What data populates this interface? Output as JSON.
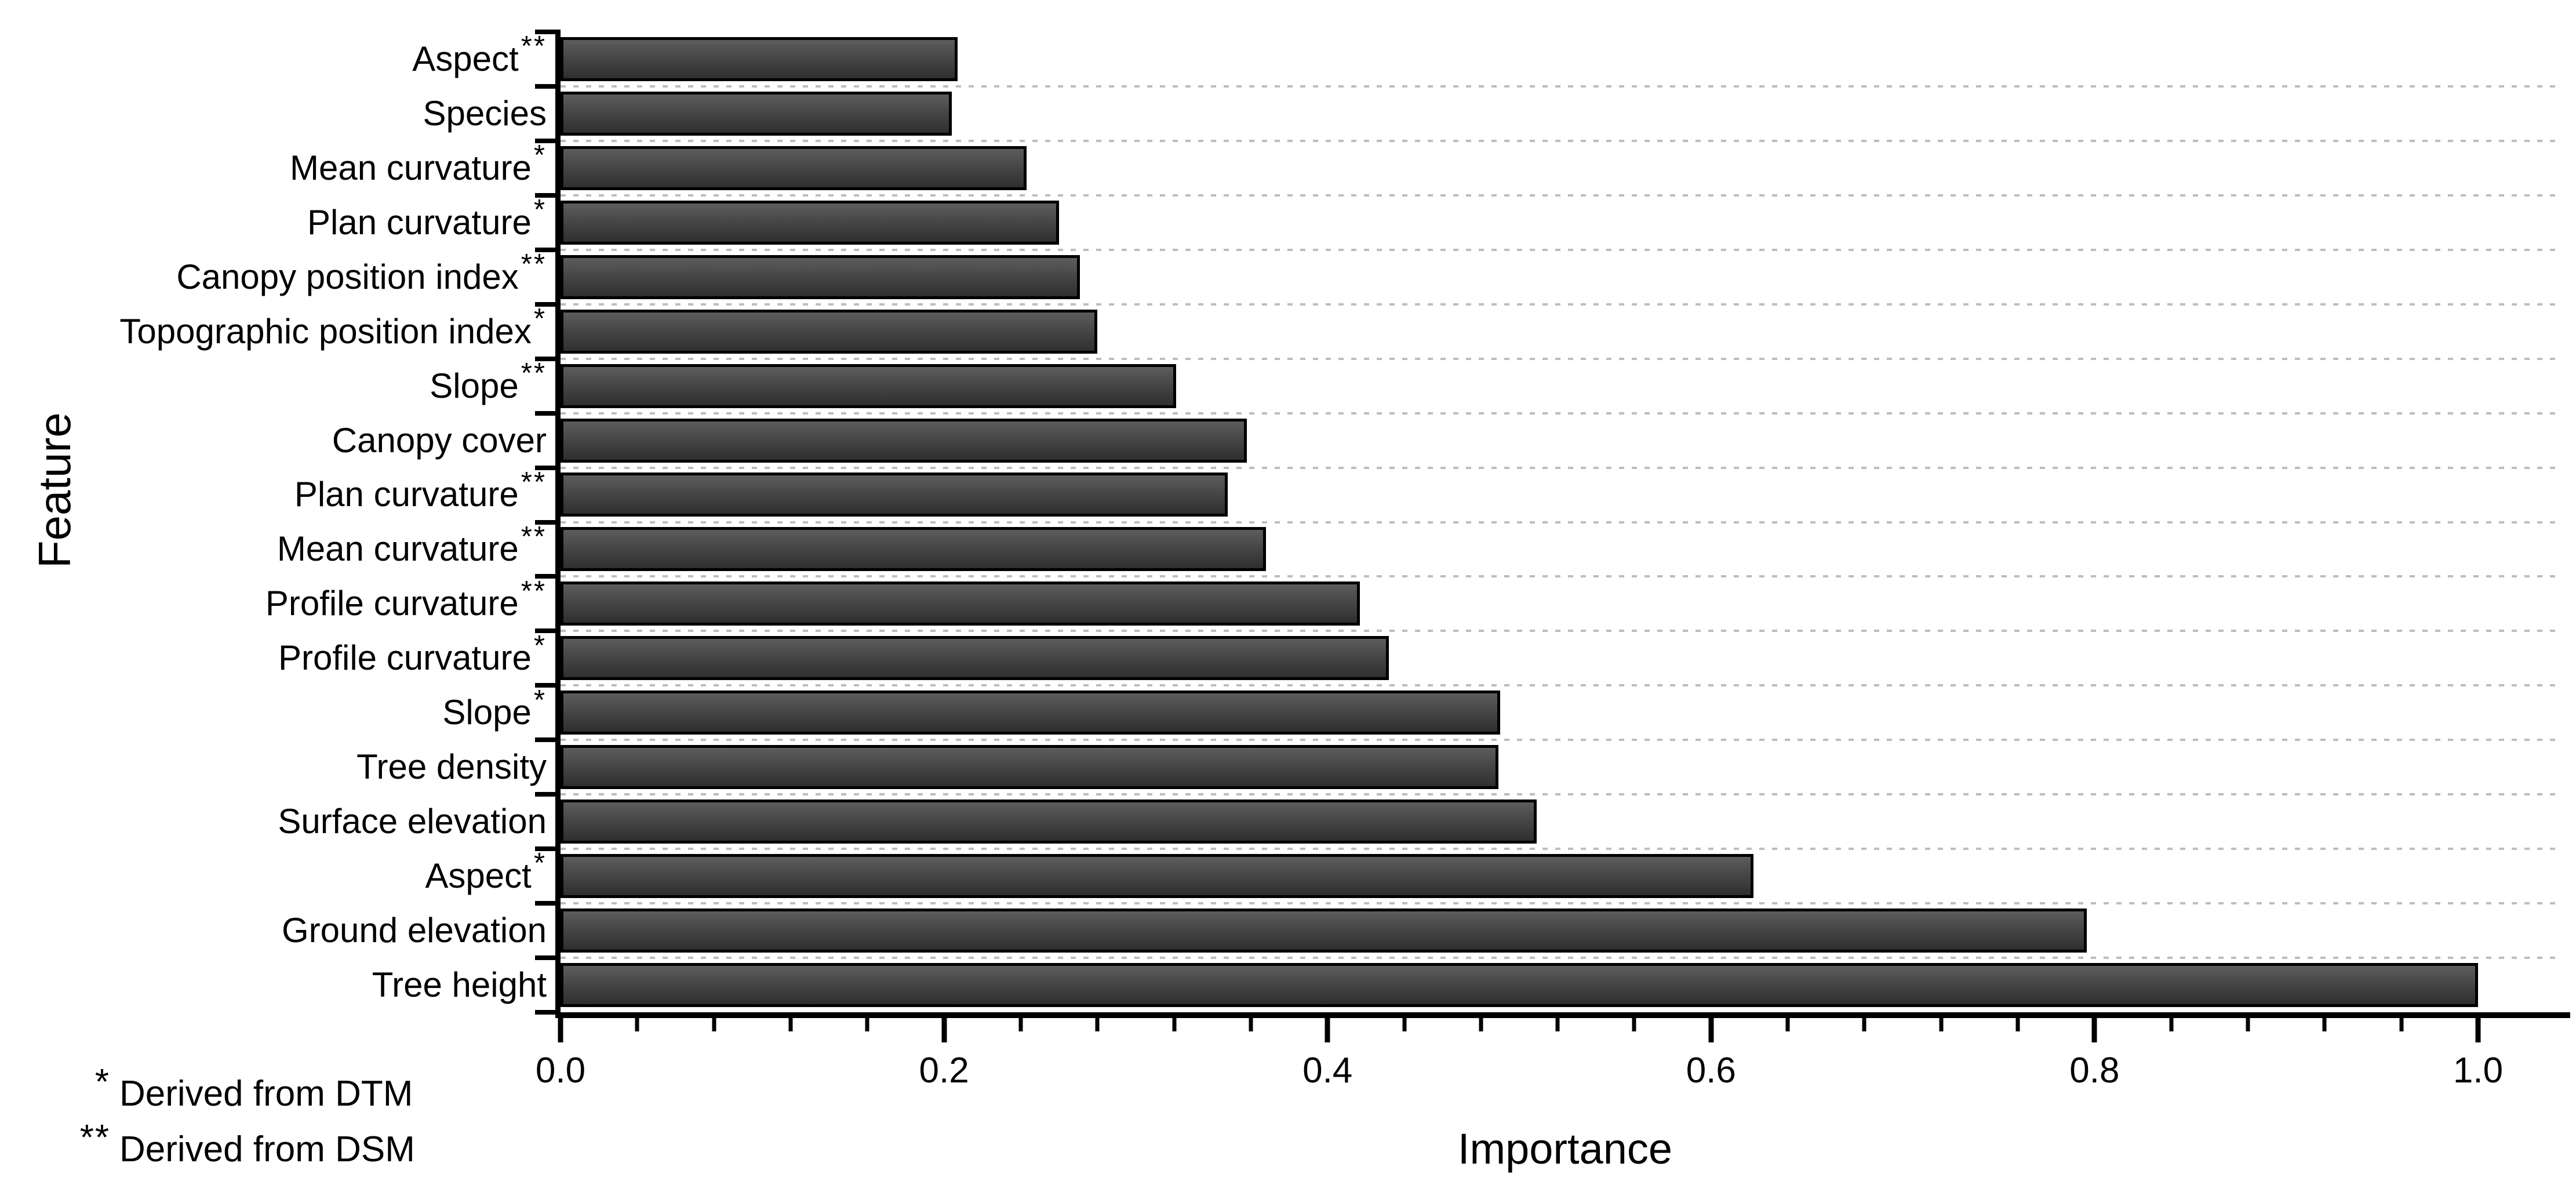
{
  "chart_data": {
    "type": "bar",
    "orientation": "horizontal",
    "title": "",
    "xlabel": "Importance",
    "ylabel": "Feature",
    "xlim": [
      0.0,
      1.0
    ],
    "x_major_tick_values": [
      0.0,
      0.2,
      0.4,
      0.6,
      0.8,
      1.0
    ],
    "x_major_tick_labels": [
      "0.0",
      "0.2",
      "0.4",
      "0.6",
      "0.8",
      "1.0"
    ],
    "x_minor_tick_step": 0.04,
    "grid": "dashed horizontal separators between category rows",
    "legend": "none",
    "categories": [
      {
        "label": "Aspect",
        "marker": "**",
        "value": 0.207
      },
      {
        "label": "Species",
        "marker": "",
        "value": 0.204
      },
      {
        "label": "Mean curvature",
        "marker": "*",
        "value": 0.243
      },
      {
        "label": "Plan curvature",
        "marker": "*",
        "value": 0.26
      },
      {
        "label": "Canopy position index",
        "marker": "**",
        "value": 0.271
      },
      {
        "label": "Topographic position index",
        "marker": "*",
        "value": 0.28
      },
      {
        "label": "Slope",
        "marker": "**",
        "value": 0.321
      },
      {
        "label": "Canopy cover",
        "marker": "",
        "value": 0.358
      },
      {
        "label": "Plan curvature",
        "marker": "**",
        "value": 0.348
      },
      {
        "label": "Mean curvature",
        "marker": "**",
        "value": 0.368
      },
      {
        "label": "Profile curvature",
        "marker": "**",
        "value": 0.417
      },
      {
        "label": "Profile curvature",
        "marker": "*",
        "value": 0.432
      },
      {
        "label": "Slope",
        "marker": "*",
        "value": 0.49
      },
      {
        "label": "Tree density",
        "marker": "",
        "value": 0.489
      },
      {
        "label": "Surface elevation",
        "marker": "",
        "value": 0.509
      },
      {
        "label": "Aspect",
        "marker": "*",
        "value": 0.622
      },
      {
        "label": "Ground elevation",
        "marker": "",
        "value": 0.796
      },
      {
        "label": "Tree height",
        "marker": "",
        "value": 1.0
      }
    ],
    "footnotes": [
      {
        "marker": "*",
        "text": "Derived from DTM"
      },
      {
        "marker": "**",
        "text": "Derived from DSM"
      }
    ],
    "colors": {
      "background": "#ffffff",
      "text": "#000000",
      "bar_fill_top": "#5d5d5d",
      "bar_fill_mid": "#474747",
      "bar_fill_bottom": "#2f2f2f",
      "bar_border": "#000000",
      "separator": "#bdbdbd",
      "axis": "#000000"
    }
  }
}
